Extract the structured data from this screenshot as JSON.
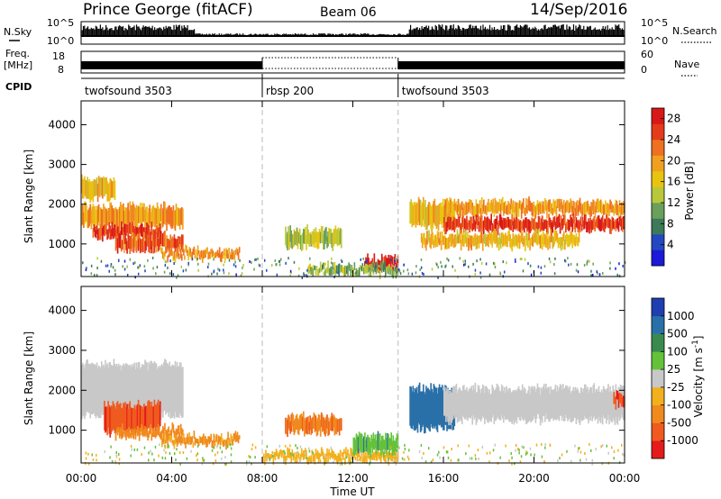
{
  "header": {
    "station": "Prince George (fitACF)",
    "beam": "Beam 06",
    "date": "14/Sep/2016"
  },
  "panels": {
    "nsky": {
      "label": "N.Sky",
      "right_label": "N.Search",
      "ticks_left": [
        "10^5",
        "10^0"
      ],
      "ticks_right": [
        "10^5",
        "10^0"
      ]
    },
    "freq": {
      "label_1": "Freq.",
      "label_2": "[MHz]",
      "right_label": "Nave",
      "ticks_left": [
        "18",
        "8"
      ],
      "ticks_right": [
        "60",
        "0"
      ]
    },
    "cpid": {
      "label": "CPID",
      "segments": [
        {
          "name": "twofsound 3503",
          "start_hour": 0,
          "end_hour": 8
        },
        {
          "name": "rbsp 200",
          "start_hour": 8,
          "end_hour": 14
        },
        {
          "name": "twofsound 3503",
          "start_hour": 14,
          "end_hour": 24
        }
      ]
    }
  },
  "chart_data": [
    {
      "type": "heatmap",
      "title": "",
      "xlabel": "Time UT",
      "ylabel": "Slant Range [km]",
      "xlim": [
        0,
        24
      ],
      "ylim": [
        180,
        4600
      ],
      "yticks": [
        "1000",
        "2000",
        "3000",
        "4000"
      ],
      "xticks": [
        "00:00",
        "04:00",
        "08:00",
        "12:00",
        "16:00",
        "20:00",
        "00:00"
      ],
      "colorbar": {
        "label": "Power [dB]",
        "ticks": [
          "4",
          "8",
          "12",
          "16",
          "20",
          "24",
          "28"
        ],
        "range": [
          0,
          30
        ],
        "colors": [
          "#1a1ad8",
          "#2448c0",
          "#3c7a5a",
          "#6aa05a",
          "#b8c83a",
          "#e8c410",
          "#f0a020",
          "#ee7020",
          "#e53a1c",
          "#d81818"
        ]
      },
      "echo_regions": [
        {
          "t_start": 0.0,
          "t_end": 1.5,
          "range_low": 2100,
          "range_high": 2700,
          "value": 18
        },
        {
          "t_start": 0.0,
          "t_end": 4.5,
          "range_low": 1400,
          "range_high": 2000,
          "value": 20
        },
        {
          "t_start": 0.5,
          "t_end": 3.5,
          "range_low": 1100,
          "range_high": 1500,
          "value": 26
        },
        {
          "t_start": 1.5,
          "t_end": 4.5,
          "range_low": 800,
          "range_high": 1250,
          "value": 24
        },
        {
          "t_start": 3.5,
          "t_end": 7.0,
          "range_low": 600,
          "range_high": 900,
          "value": 20
        },
        {
          "t_start": 9.0,
          "t_end": 11.5,
          "range_low": 900,
          "range_high": 1400,
          "value": 14
        },
        {
          "t_start": 12.5,
          "t_end": 14.0,
          "range_low": 300,
          "range_high": 700,
          "value": 28
        },
        {
          "t_start": 10.0,
          "t_end": 14.0,
          "range_low": 200,
          "range_high": 500,
          "value": 12
        },
        {
          "t_start": 14.5,
          "t_end": 16.5,
          "range_low": 1400,
          "range_high": 2100,
          "value": 18
        },
        {
          "t_start": 16.0,
          "t_end": 24.0,
          "range_low": 1700,
          "range_high": 2100,
          "value": 20
        },
        {
          "t_start": 16.0,
          "t_end": 24.0,
          "range_low": 1300,
          "range_high": 1700,
          "value": 26
        },
        {
          "t_start": 15.0,
          "t_end": 22.0,
          "range_low": 900,
          "range_high": 1300,
          "value": 18
        }
      ]
    },
    {
      "type": "heatmap",
      "title": "",
      "xlabel": "Time UT",
      "ylabel": "Slant Range [km]",
      "xlim": [
        0,
        24
      ],
      "ylim": [
        180,
        4600
      ],
      "yticks": [
        "1000",
        "2000",
        "3000",
        "4000"
      ],
      "xticks": [
        "00:00",
        "04:00",
        "08:00",
        "12:00",
        "16:00",
        "20:00",
        "00:00"
      ],
      "colorbar": {
        "label": "Velocity [m s^-1]",
        "ticks": [
          "1000",
          "500",
          "100",
          "25",
          "-25",
          "-100",
          "-500",
          "-1000"
        ],
        "colors": [
          "#1f3fb0",
          "#2a70a8",
          "#3a8a50",
          "#64c23a",
          "#c8c8c8",
          "#f2b01e",
          "#f08a1e",
          "#ef5a1e",
          "#e51a1a"
        ]
      },
      "echo_regions": [
        {
          "t_start": 0.0,
          "t_end": 4.5,
          "range_low": 1300,
          "range_high": 2700,
          "value": 0
        },
        {
          "t_start": 1.0,
          "t_end": 3.5,
          "range_low": 900,
          "range_high": 1700,
          "value": -800
        },
        {
          "t_start": 1.5,
          "t_end": 4.5,
          "range_low": 800,
          "range_high": 1100,
          "value": -150
        },
        {
          "t_start": 3.5,
          "t_end": 7.0,
          "range_low": 600,
          "range_high": 900,
          "value": -120
        },
        {
          "t_start": 9.0,
          "t_end": 11.5,
          "range_low": 900,
          "range_high": 1400,
          "value": -500
        },
        {
          "t_start": 8.0,
          "t_end": 14.0,
          "range_low": 200,
          "range_high": 500,
          "value": -60
        },
        {
          "t_start": 12.0,
          "t_end": 14.0,
          "range_low": 400,
          "range_high": 900,
          "value": 80
        },
        {
          "t_start": 14.5,
          "t_end": 16.5,
          "range_low": 1000,
          "range_high": 2100,
          "value": 300
        },
        {
          "t_start": 16.0,
          "t_end": 24.0,
          "range_low": 1200,
          "range_high": 2100,
          "value": 0
        },
        {
          "t_start": 23.5,
          "t_end": 24.0,
          "range_low": 1600,
          "range_high": 2000,
          "value": -900
        }
      ]
    }
  ]
}
